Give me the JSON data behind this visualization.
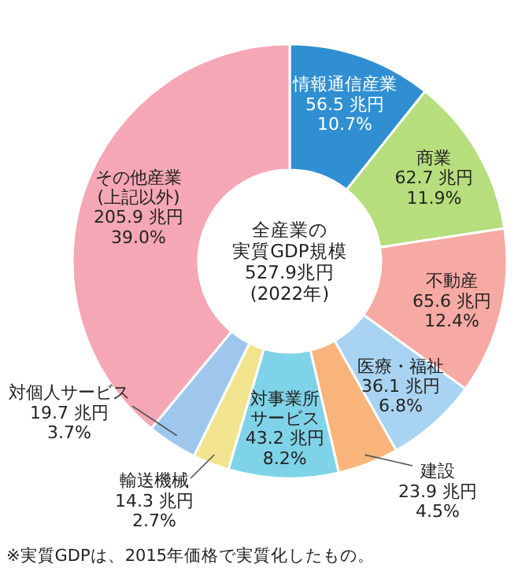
{
  "chart_data": {
    "type": "donut",
    "categories": [
      "情報通信産業",
      "商業",
      "不動産",
      "医療・福祉",
      "建設",
      "対事業所サービス",
      "輸送機械",
      "対個人サービス",
      "その他産業(上記以外)"
    ],
    "values": [
      56.5,
      62.7,
      65.6,
      36.1,
      23.9,
      43.2,
      14.3,
      19.7,
      205.9
    ],
    "value_labels": [
      "56.5 兆円\n10.7%",
      "62.7 兆円\n11.9%",
      "65.6 兆円\n12.4%",
      "36.1 兆円\n6.8%",
      "23.9 兆円\n4.5%",
      "43.2 兆円\n8.2%",
      "14.3 兆円\n2.7%",
      "19.7 兆円\n3.7%",
      "205.9 兆円\n39.0%"
    ],
    "colors": [
      "#2f8fd2",
      "#b6de7c",
      "#f7a9a3",
      "#a9d3f2",
      "#f8b47a",
      "#7fd3e8",
      "#f2e48e",
      "#9fc7ee",
      "#f6a7b5"
    ],
    "annotations": [
      "全産業の",
      "実質GDP規模",
      "527.9兆円",
      "(2022年)",
      "※実質GDPは、2015年価格で実質化したもの。"
    ]
  }
}
